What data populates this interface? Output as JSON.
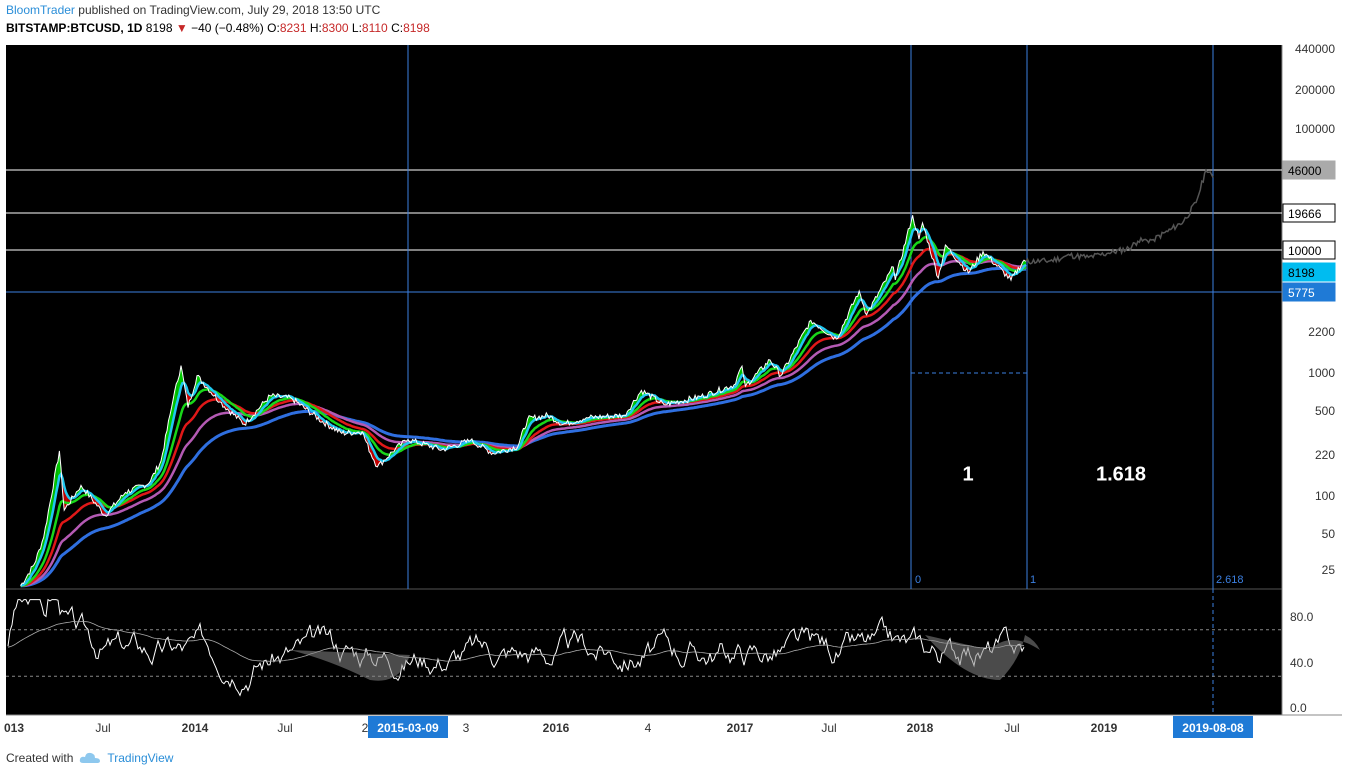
{
  "header": {
    "author": "BloomTrader",
    "published_text": "published on TradingView.com, July 29, 2018 13:50 UTC",
    "symbol": "BITSTAMP:BTCUSD, 1D",
    "last": "8198",
    "change": "−40 (−0.48%)",
    "o_label": "O:",
    "o_value": "8231",
    "h_label": "H:",
    "h_value": "8300",
    "l_label": "L:",
    "l_value": "8110",
    "c_label": "C:",
    "c_value": "8198"
  },
  "footer": {
    "created_with": "Created with",
    "brand": "TradingView"
  },
  "colors": {
    "background": "#000000",
    "bull_fill": "#00e000",
    "bear_fill": "#e00000",
    "ma_cyan": "#20c8f0",
    "ma_green": "#19d719",
    "ma_red": "#e01818",
    "ma_violet": "#b45ab4",
    "ma_blue": "#2f6fe0",
    "fib_line": "#3b7fe0",
    "axis_highlight": "#1f7ad6",
    "price_tag_last": "#00bcf0",
    "price_tag_5775": "#1f7ad6"
  },
  "chart_data": {
    "type": "line",
    "scale": "log",
    "y_ticks": [
      "440000",
      "200000",
      "100000",
      "46000",
      "19666",
      "10000",
      "8198",
      "5775",
      "2200",
      "1000",
      "500",
      "220",
      "100",
      "50",
      "25"
    ],
    "price_tags": [
      {
        "label": "46000",
        "style": "gray"
      },
      {
        "label": "19666",
        "style": "white"
      },
      {
        "label": "10000",
        "style": "white"
      },
      {
        "label": "8198",
        "style": "cyan"
      },
      {
        "label": "5775",
        "style": "blue"
      }
    ],
    "x_ticks": [
      "013",
      "Jul",
      "2014",
      "Jul",
      "2",
      "2015-03-09",
      "3",
      "2016",
      "4",
      "2017",
      "Jul",
      "2018",
      "Jul",
      "2019",
      "2019-08-08"
    ],
    "highlighted_x_ticks": [
      "2015-03-09",
      "2019-08-08"
    ],
    "fib_labels": [
      "0",
      "1",
      "2.618"
    ],
    "annotations": [
      "1",
      "1.618"
    ],
    "rsi": {
      "y_ticks": [
        "80.0",
        "40.0",
        "0.0"
      ],
      "levels": [
        70,
        30
      ]
    }
  }
}
